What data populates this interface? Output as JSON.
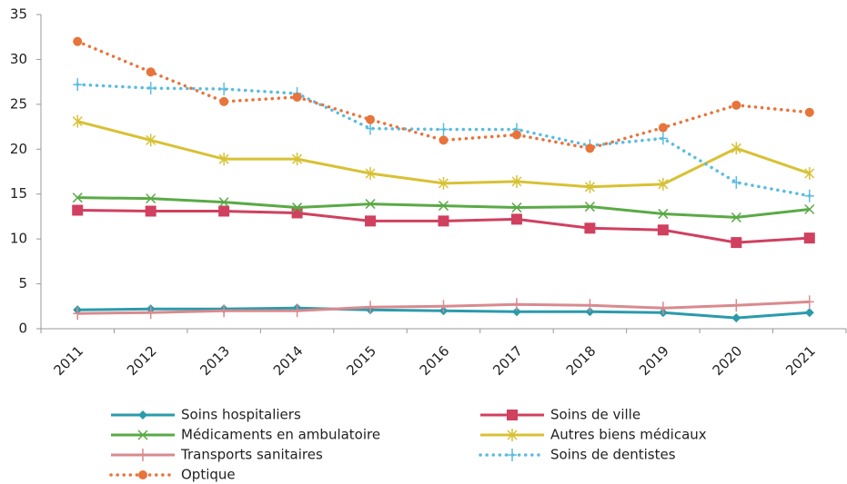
{
  "chart_data": {
    "type": "line",
    "categories": [
      "2011",
      "2012",
      "2013",
      "2014",
      "2015",
      "2016",
      "2017",
      "2018",
      "2019",
      "2020",
      "2021"
    ],
    "ylim": [
      0,
      35
    ],
    "yticks": [
      0,
      5,
      10,
      15,
      20,
      25,
      30,
      35
    ],
    "grid": false,
    "series": [
      {
        "name": "Soins hospitaliers",
        "color": "#2a9bab",
        "marker": "diamond",
        "dash": "solid",
        "values": [
          2.1,
          2.2,
          2.2,
          2.3,
          2.1,
          2.0,
          1.9,
          1.9,
          1.8,
          1.2,
          1.8
        ]
      },
      {
        "name": "Soins de ville",
        "color": "#d0405f",
        "marker": "square",
        "dash": "solid",
        "values": [
          13.2,
          13.1,
          13.1,
          12.9,
          12.0,
          12.0,
          12.2,
          11.2,
          11.0,
          9.6,
          10.1
        ]
      },
      {
        "name": "Médicaments en ambulatoire",
        "color": "#5aaa46",
        "marker": "x",
        "dash": "solid",
        "values": [
          14.6,
          14.5,
          14.1,
          13.5,
          13.9,
          13.7,
          13.5,
          13.6,
          12.8,
          12.4,
          13.3
        ]
      },
      {
        "name": "Autres biens médicaux",
        "color": "#d8c134",
        "marker": "star",
        "dash": "solid",
        "values": [
          23.1,
          21.0,
          18.9,
          18.9,
          17.3,
          16.2,
          16.4,
          15.8,
          16.1,
          20.1,
          17.3
        ]
      },
      {
        "name": "Transports sanitaires",
        "color": "#d98a8f",
        "marker": "plus",
        "dash": "solid",
        "values": [
          1.7,
          1.8,
          2.0,
          2.0,
          2.4,
          2.5,
          2.7,
          2.6,
          2.3,
          2.6,
          3.0
        ]
      },
      {
        "name": "Soins de dentistes",
        "color": "#5bbce0",
        "marker": "plus",
        "dash": "dotted",
        "values": [
          27.2,
          26.8,
          26.7,
          26.2,
          22.3,
          22.2,
          22.2,
          20.4,
          21.2,
          16.3,
          14.8
        ]
      },
      {
        "name": "Optique",
        "color": "#e8743b",
        "marker": "circle",
        "dash": "dotted",
        "values": [
          32.0,
          28.6,
          25.3,
          25.8,
          23.3,
          21.0,
          21.6,
          20.1,
          22.4,
          24.9,
          24.1
        ]
      }
    ]
  }
}
